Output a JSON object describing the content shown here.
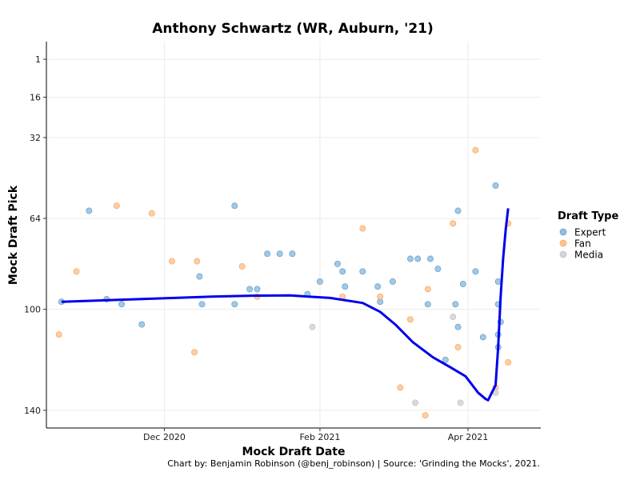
{
  "chart_data": {
    "type": "scatter",
    "title": "Anthony Schwartz (WR, Auburn, '21)",
    "xlabel": "Mock Draft Date",
    "ylabel": "Mock Draft Pick",
    "caption": "Chart by: Benjamin Robinson (@benj_robinson) | Source: 'Grinding the Mocks', 2021.",
    "x_ticks": [
      {
        "date": "2020-12-01",
        "label": "Dec 2020"
      },
      {
        "date": "2021-02-01",
        "label": "Feb 2021"
      },
      {
        "date": "2021-04-01",
        "label": "Apr 2021"
      }
    ],
    "xlim": [
      "2020-10-15",
      "2021-04-30"
    ],
    "y_ticks": [
      1,
      16,
      32,
      64,
      100,
      140
    ],
    "ylim": [
      147,
      -6
    ],
    "y_scale": "linear-reversed",
    "grid": true,
    "legend_title": "Draft Type",
    "legend_position": "right",
    "colors": {
      "Expert": "#8fbfe0",
      "Fan": "#ffc48e",
      "Media": "#d3d3d8",
      "trend": "#0000ee"
    },
    "series": [
      {
        "name": "Expert",
        "points": [
          [
            "2020-10-21",
            97
          ],
          [
            "2020-11-01",
            61
          ],
          [
            "2020-11-08",
            96
          ],
          [
            "2020-11-14",
            98
          ],
          [
            "2020-11-22",
            106
          ],
          [
            "2020-12-15",
            87
          ],
          [
            "2020-12-16",
            98
          ],
          [
            "2020-12-29",
            59
          ],
          [
            "2020-12-29",
            98
          ],
          [
            "2021-01-04",
            92
          ],
          [
            "2021-01-07",
            92
          ],
          [
            "2021-01-11",
            78
          ],
          [
            "2021-01-16",
            78
          ],
          [
            "2021-01-21",
            78
          ],
          [
            "2021-01-27",
            94
          ],
          [
            "2021-02-01",
            89
          ],
          [
            "2021-02-08",
            82
          ],
          [
            "2021-02-10",
            85
          ],
          [
            "2021-02-11",
            91
          ],
          [
            "2021-02-18",
            85
          ],
          [
            "2021-02-24",
            91
          ],
          [
            "2021-02-25",
            97
          ],
          [
            "2021-03-02",
            89
          ],
          [
            "2021-03-09",
            80
          ],
          [
            "2021-03-12",
            80
          ],
          [
            "2021-03-16",
            98
          ],
          [
            "2021-03-17",
            80
          ],
          [
            "2021-03-20",
            84
          ],
          [
            "2021-03-23",
            120
          ],
          [
            "2021-03-27",
            98
          ],
          [
            "2021-03-28",
            61
          ],
          [
            "2021-03-28",
            107
          ],
          [
            "2021-03-30",
            90
          ],
          [
            "2021-04-04",
            85
          ],
          [
            "2021-04-07",
            111
          ],
          [
            "2021-04-12",
            51
          ],
          [
            "2021-04-13",
            89
          ],
          [
            "2021-04-13",
            98
          ],
          [
            "2021-04-13",
            110
          ],
          [
            "2021-04-13",
            115
          ],
          [
            "2021-04-14",
            105
          ]
        ]
      },
      {
        "name": "Fan",
        "points": [
          [
            "2020-10-20",
            110
          ],
          [
            "2020-10-27",
            85
          ],
          [
            "2020-11-12",
            59
          ],
          [
            "2020-11-26",
            62
          ],
          [
            "2020-12-04",
            81
          ],
          [
            "2020-12-13",
            117
          ],
          [
            "2020-12-14",
            81
          ],
          [
            "2021-01-01",
            83
          ],
          [
            "2021-01-07",
            95
          ],
          [
            "2021-02-10",
            95
          ],
          [
            "2021-02-18",
            68
          ],
          [
            "2021-02-25",
            95
          ],
          [
            "2021-03-05",
            131
          ],
          [
            "2021-03-09",
            104
          ],
          [
            "2021-03-15",
            142
          ],
          [
            "2021-03-16",
            92
          ],
          [
            "2021-03-26",
            66
          ],
          [
            "2021-03-28",
            115
          ],
          [
            "2021-04-04",
            37
          ],
          [
            "2021-04-12",
            131
          ],
          [
            "2021-04-17",
            66
          ],
          [
            "2021-04-17",
            121
          ]
        ]
      },
      {
        "name": "Media",
        "points": [
          [
            "2021-01-29",
            107
          ],
          [
            "2021-03-11",
            137
          ],
          [
            "2021-03-26",
            103
          ],
          [
            "2021-03-29",
            137
          ],
          [
            "2021-04-12",
            133
          ]
        ]
      }
    ],
    "trend": {
      "name": "Smoothed trend",
      "points": [
        [
          "2020-10-21",
          97
        ],
        [
          "2020-11-20",
          96
        ],
        [
          "2020-12-20",
          95
        ],
        [
          "2021-01-05",
          94.6
        ],
        [
          "2021-01-20",
          94.5
        ],
        [
          "2021-02-05",
          95.5
        ],
        [
          "2021-02-18",
          97.5
        ],
        [
          "2021-02-25",
          101
        ],
        [
          "2021-03-03",
          106
        ],
        [
          "2021-03-10",
          113
        ],
        [
          "2021-03-18",
          119
        ],
        [
          "2021-03-25",
          123
        ],
        [
          "2021-03-31",
          126.5
        ],
        [
          "2021-04-05",
          133
        ],
        [
          "2021-04-08",
          135.5
        ],
        [
          "2021-04-09",
          136
        ],
        [
          "2021-04-11",
          132
        ],
        [
          "2021-04-12",
          130
        ],
        [
          "2021-04-13",
          115
        ],
        [
          "2021-04-14",
          95
        ],
        [
          "2021-04-15",
          80
        ],
        [
          "2021-04-16",
          68.5
        ],
        [
          "2021-04-17",
          60
        ]
      ]
    }
  }
}
